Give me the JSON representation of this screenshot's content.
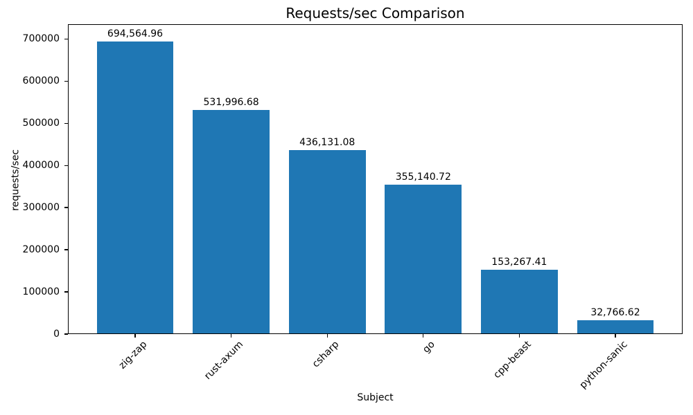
{
  "chart_data": {
    "type": "bar",
    "title": "Requests/sec Comparison",
    "xlabel": "Subject",
    "ylabel": "requests/sec",
    "categories": [
      "zig-zap",
      "rust-axum",
      "csharp",
      "go",
      "cpp-beast",
      "python-sanic"
    ],
    "values": [
      694564.96,
      531996.68,
      436131.08,
      355140.72,
      153267.41,
      32766.62
    ],
    "value_labels": [
      "694,564.96",
      "531,996.68",
      "436,131.08",
      "355,140.72",
      "153,267.41",
      "32,766.62"
    ],
    "yticks": [
      0,
      100000,
      200000,
      300000,
      400000,
      500000,
      600000,
      700000
    ],
    "ytick_labels": [
      "0",
      "100000",
      "200000",
      "300000",
      "400000",
      "500000",
      "600000",
      "700000"
    ],
    "ylim": [
      0,
      735000
    ],
    "x_tick_rotation": 45,
    "grid": false,
    "legend_position": "none",
    "bar_color": "#1f77b4",
    "text_color": "#000000",
    "spine_color": "#000000",
    "background_color": "#ffffff"
  }
}
